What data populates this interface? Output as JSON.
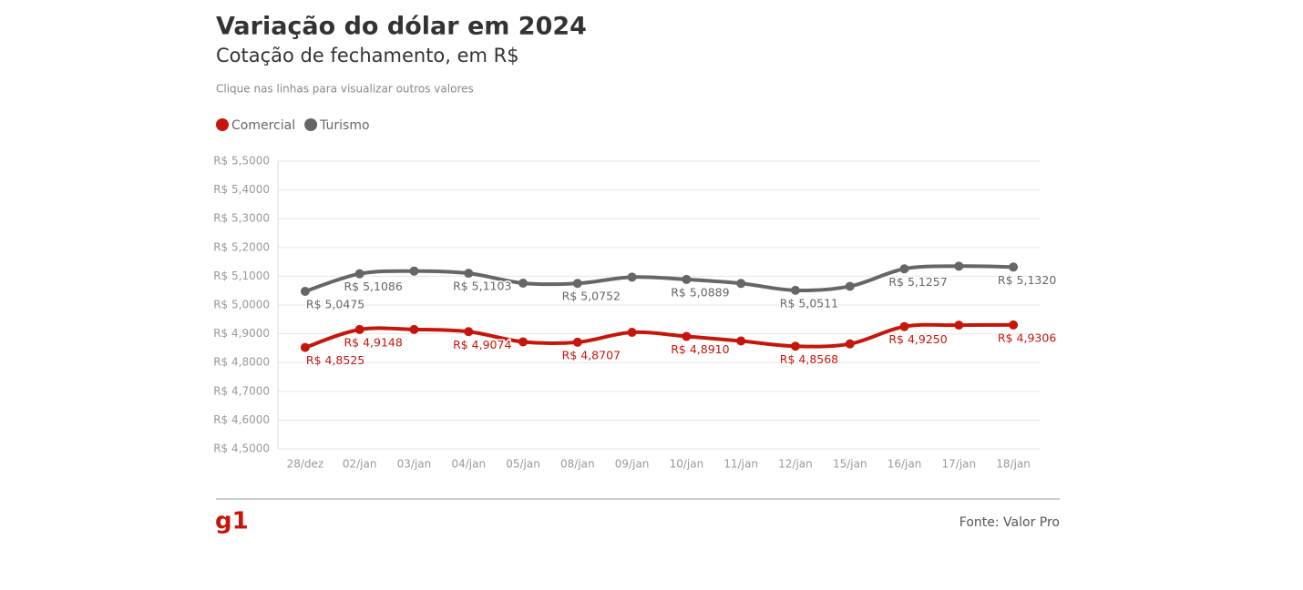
{
  "chart_data": {
    "type": "line",
    "title": "Variação do dólar em 2024",
    "subtitle": "Cotação de fechamento, em R$",
    "note": "Clique nas linhas para visualizar outros valores",
    "source": "Fonte: Valor Pro",
    "logo": "g1",
    "categories": [
      "28/dez",
      "02/jan",
      "03/jan",
      "04/jan",
      "05/jan",
      "08/jan",
      "09/jan",
      "10/jan",
      "11/jan",
      "12/jan",
      "15/jan",
      "16/jan",
      "17/jan",
      "18/jan"
    ],
    "series": [
      {
        "name": "Comercial",
        "color": "#c4170c",
        "values": [
          4.8525,
          4.9148,
          4.915,
          4.9074,
          4.872,
          4.8707,
          4.905,
          4.891,
          4.875,
          4.8568,
          4.865,
          4.925,
          4.93,
          4.9306
        ],
        "value_labels": [
          "R$ 4,8525",
          "R$ 4,9148",
          null,
          "R$ 4,9074",
          null,
          "R$ 4,8707",
          null,
          "R$ 4,8910",
          null,
          "R$ 4,8568",
          null,
          "R$ 4,9250",
          null,
          "R$ 4,9306"
        ]
      },
      {
        "name": "Turismo",
        "color": "#666666",
        "values": [
          5.0475,
          5.1086,
          5.118,
          5.1103,
          5.076,
          5.0752,
          5.097,
          5.0889,
          5.075,
          5.0511,
          5.065,
          5.1257,
          5.135,
          5.132
        ],
        "value_labels": [
          "R$ 5,0475",
          "R$ 5,1086",
          null,
          "R$ 5,1103",
          null,
          "R$ 5,0752",
          null,
          "R$ 5,0889",
          null,
          "R$ 5,0511",
          null,
          "R$ 5,1257",
          null,
          "R$ 5,1320"
        ]
      }
    ],
    "ylim": [
      4.5,
      5.5
    ],
    "yticks": [
      {
        "value": 4.5,
        "label": "R$ 4,5000"
      },
      {
        "value": 4.6,
        "label": "R$ 4,6000"
      },
      {
        "value": 4.7,
        "label": "R$ 4,7000"
      },
      {
        "value": 4.8,
        "label": "R$ 4,8000"
      },
      {
        "value": 4.9,
        "label": "R$ 4,9000"
      },
      {
        "value": 5.0,
        "label": "R$ 5,0000"
      },
      {
        "value": 5.1,
        "label": "R$ 5,1000"
      },
      {
        "value": 5.2,
        "label": "R$ 5,2000"
      },
      {
        "value": 5.3,
        "label": "R$ 5,3000"
      },
      {
        "value": 5.4,
        "label": "R$ 5,4000"
      },
      {
        "value": 5.5,
        "label": "R$ 5,5000"
      }
    ],
    "grid": true,
    "legend": "top-left"
  }
}
